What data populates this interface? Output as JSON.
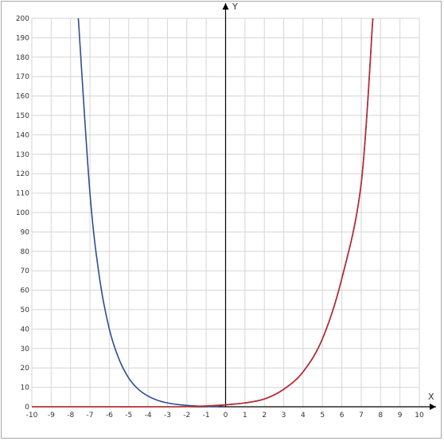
{
  "chart_data": {
    "type": "line",
    "title": "",
    "xlabel": "X",
    "ylabel": "Y",
    "xlim": [
      -10,
      10
    ],
    "ylim": [
      0,
      200
    ],
    "x_ticks": [
      -10,
      -9,
      -8,
      -7,
      -6,
      -5,
      -4,
      -3,
      -2,
      -1,
      0,
      1,
      2,
      3,
      4,
      5,
      6,
      7,
      8,
      9,
      10
    ],
    "y_ticks": [
      0,
      10,
      20,
      30,
      40,
      50,
      60,
      70,
      80,
      90,
      100,
      110,
      120,
      130,
      140,
      150,
      160,
      170,
      180,
      190,
      200
    ],
    "grid": true,
    "series": [
      {
        "color": "#2b4f8e",
        "x": [
          -7.6,
          -7.0,
          -6.5,
          -6.0,
          -5.5,
          -5.0,
          -4.5,
          -4.0,
          -3.5,
          -3.0,
          -2.5,
          -2.0,
          -1.5,
          -1.0,
          -0.5,
          0.0,
          1.0,
          2.0,
          3.0,
          4.0,
          5.0,
          6.0,
          7.0,
          7.6
        ],
        "y": [
          200,
          110,
          66,
          40,
          24.5,
          14.8,
          9,
          5.5,
          3.3,
          2.0,
          1.2,
          0.7,
          0.4,
          0.2,
          0.1,
          1,
          2,
          4,
          9,
          18,
          35,
          66,
          115,
          200
        ]
      },
      {
        "color": "#c0272d",
        "x": [
          -10,
          -8,
          -6,
          -4,
          -2,
          0,
          1,
          2,
          3,
          4,
          5,
          6,
          7,
          7.6
        ],
        "y": [
          0.0,
          0.0,
          0.0,
          0.0,
          0.1,
          1,
          2,
          4,
          9,
          18,
          35,
          66,
          115,
          200
        ]
      }
    ]
  }
}
